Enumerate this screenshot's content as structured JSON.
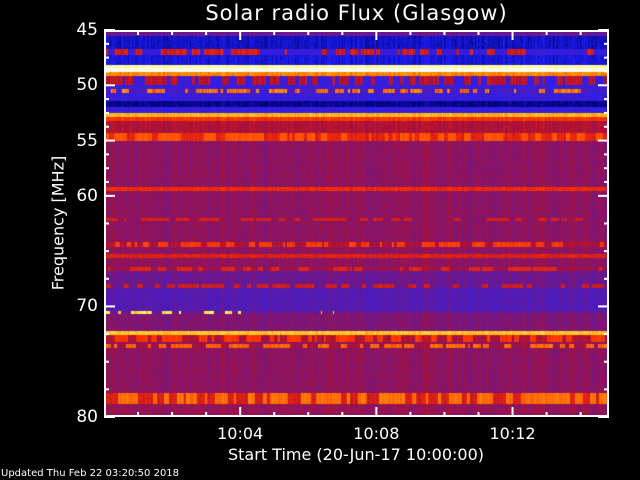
{
  "chart_data": {
    "type": "heatmap",
    "title": "Solar radio Flux (Glasgow)",
    "xlabel": "Start Time (20-Jun-17 10:00:00)",
    "ylabel": "Frequency [MHz]",
    "xlim": [
      "10:00:00",
      "10:14:50"
    ],
    "ylim": [
      45,
      80
    ],
    "y_inverted": true,
    "x_tick_labels": [
      "10:04",
      "10:08",
      "10:12"
    ],
    "y_tick_labels": [
      "45",
      "50",
      "55",
      "60",
      "70",
      "80"
    ],
    "y_tick_values": [
      45,
      50,
      55,
      60,
      70,
      80
    ],
    "x_major_minutes": [
      4,
      8,
      12
    ],
    "colormap": [
      "#000000",
      "#000070",
      "#2020ff",
      "#5a1aa8",
      "#b01030",
      "#ff3000",
      "#ffa000",
      "#ffff60",
      "#ffffff"
    ],
    "bands_mhz": [
      {
        "from": 45.0,
        "to": 45.5,
        "level": 0.4
      },
      {
        "from": 45.5,
        "to": 46.7,
        "level": 0.2
      },
      {
        "from": 46.7,
        "to": 47.3,
        "level": 0.3,
        "burst": 0.6
      },
      {
        "from": 47.3,
        "to": 48.2,
        "level": 0.22
      },
      {
        "from": 48.2,
        "to": 48.45,
        "level": 0.92
      },
      {
        "from": 48.45,
        "to": 48.8,
        "level": 1.0
      },
      {
        "from": 48.8,
        "to": 49.2,
        "level": 0.72
      },
      {
        "from": 49.2,
        "to": 50.0,
        "level": 0.3,
        "burst": 0.55
      },
      {
        "from": 50.0,
        "to": 50.3,
        "level": 0.3
      },
      {
        "from": 50.3,
        "to": 50.7,
        "level": 0.34,
        "burst": 0.76
      },
      {
        "from": 50.7,
        "to": 51.4,
        "level": 0.3
      },
      {
        "from": 51.4,
        "to": 52.0,
        "level": 0.15
      },
      {
        "from": 52.0,
        "to": 52.5,
        "level": 0.3
      },
      {
        "from": 52.5,
        "to": 52.9,
        "level": 0.78
      },
      {
        "from": 52.9,
        "to": 53.2,
        "level": 0.62
      },
      {
        "from": 53.2,
        "to": 54.3,
        "level": 0.5
      },
      {
        "from": 54.3,
        "to": 55.0,
        "level": 0.58,
        "burst": 0.68
      },
      {
        "from": 55.0,
        "to": 59.2,
        "level": 0.45
      },
      {
        "from": 59.2,
        "to": 59.6,
        "level": 0.6
      },
      {
        "from": 59.6,
        "to": 62.0,
        "level": 0.45
      },
      {
        "from": 62.0,
        "to": 62.3,
        "level": 0.45,
        "burst": 0.58
      },
      {
        "from": 62.3,
        "to": 64.2,
        "level": 0.45
      },
      {
        "from": 64.2,
        "to": 64.6,
        "level": 0.5,
        "burst": 0.66
      },
      {
        "from": 64.6,
        "to": 65.3,
        "level": 0.45
      },
      {
        "from": 65.3,
        "to": 65.6,
        "level": 0.57
      },
      {
        "from": 65.6,
        "to": 66.4,
        "level": 0.45
      },
      {
        "from": 66.4,
        "to": 66.8,
        "level": 0.47,
        "burst": 0.6
      },
      {
        "from": 66.8,
        "to": 68.0,
        "level": 0.4
      },
      {
        "from": 68.0,
        "to": 68.3,
        "level": 0.4,
        "burst": 0.58
      },
      {
        "from": 68.3,
        "to": 70.4,
        "level": 0.36
      },
      {
        "from": 70.4,
        "to": 70.7,
        "level": 0.4,
        "burst": 0.92,
        "burst_until_min": 4.0
      },
      {
        "from": 70.7,
        "to": 72.2,
        "level": 0.43
      },
      {
        "from": 72.2,
        "to": 72.6,
        "level": 0.8
      },
      {
        "from": 72.6,
        "to": 73.2,
        "level": 0.5,
        "burst": 0.65
      },
      {
        "from": 73.2,
        "to": 73.4,
        "level": 0.45
      },
      {
        "from": 73.4,
        "to": 73.8,
        "level": 0.48,
        "burst": 0.72
      },
      {
        "from": 73.8,
        "to": 77.8,
        "level": 0.45
      },
      {
        "from": 77.8,
        "to": 78.8,
        "level": 0.56,
        "burst": 0.72
      },
      {
        "from": 78.8,
        "to": 80.0,
        "level": 0.46
      }
    ]
  },
  "footer": {
    "updated": "Updated Thu Feb 22 03:20:50 2018"
  }
}
